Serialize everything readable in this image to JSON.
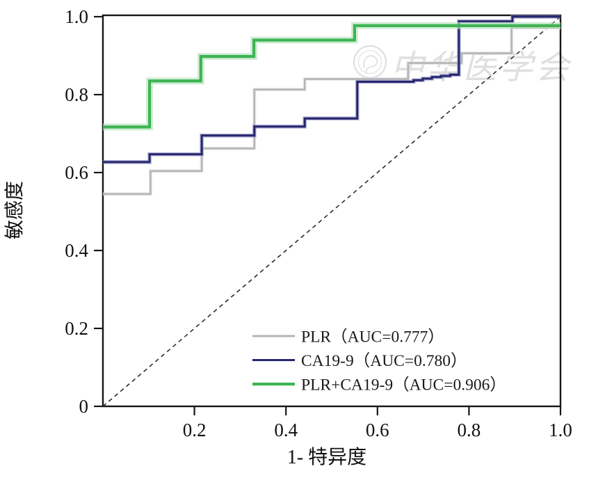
{
  "figure": {
    "background": "#ffffff"
  },
  "watermark": {
    "text": "中华医学会",
    "color": "#c6c6ca",
    "opacity": 0.55
  },
  "chart_data": {
    "type": "line",
    "variant": "roc-step-curves",
    "title": "",
    "xlabel": "1- 特异度",
    "ylabel": "敏感度",
    "xlim": [
      0,
      1.0
    ],
    "ylim": [
      0,
      1.0
    ],
    "grid": false,
    "axis_color": "#161616",
    "x_ticks": {
      "values": [
        0.2,
        0.4,
        0.6,
        0.8,
        1.0
      ],
      "labels": [
        "0.2",
        "0.4",
        "0.6",
        "0.8",
        "1.0"
      ]
    },
    "y_ticks": {
      "values": [
        0,
        0.2,
        0.4,
        0.6,
        0.8,
        1.0
      ],
      "labels": [
        "0",
        "0.2",
        "0.4",
        "0.6",
        "0.8",
        "1.0"
      ]
    },
    "reference_line": {
      "name": "chance-diagonal",
      "points": [
        [
          0,
          0
        ],
        [
          1,
          1
        ]
      ],
      "color": "#2b2b2b",
      "dash": "6 5",
      "width": 1.6
    },
    "series": [
      {
        "name": "PLR",
        "auc": 0.777,
        "color": "#b5b5b8",
        "halo": "#e0e0e3",
        "halo_width": 5.2,
        "width": 2.6,
        "points": [
          [
            0,
            0.545
          ],
          [
            0.104,
            0.545
          ],
          [
            0.104,
            0.604
          ],
          [
            0.216,
            0.604
          ],
          [
            0.216,
            0.662
          ],
          [
            0.331,
            0.662
          ],
          [
            0.331,
            0.813
          ],
          [
            0.441,
            0.813
          ],
          [
            0.441,
            0.84
          ],
          [
            0.667,
            0.84
          ],
          [
            0.667,
            0.881
          ],
          [
            0.784,
            0.881
          ],
          [
            0.784,
            0.906
          ],
          [
            0.893,
            0.906
          ],
          [
            0.893,
            0.972
          ],
          [
            1.0,
            0.972
          ]
        ]
      },
      {
        "name": "CA19-9",
        "auc": 0.78,
        "color": "#26266e",
        "halo": "#8b8bbf",
        "halo_width": 5.6,
        "width": 3,
        "points": [
          [
            0,
            0.627
          ],
          [
            0.102,
            0.627
          ],
          [
            0.102,
            0.647
          ],
          [
            0.216,
            0.647
          ],
          [
            0.216,
            0.695
          ],
          [
            0.331,
            0.695
          ],
          [
            0.331,
            0.718
          ],
          [
            0.441,
            0.718
          ],
          [
            0.441,
            0.739
          ],
          [
            0.556,
            0.739
          ],
          [
            0.556,
            0.833
          ],
          [
            0.679,
            0.833
          ],
          [
            0.679,
            0.837
          ],
          [
            0.699,
            0.837
          ],
          [
            0.699,
            0.841
          ],
          [
            0.719,
            0.841
          ],
          [
            0.719,
            0.845
          ],
          [
            0.739,
            0.845
          ],
          [
            0.739,
            0.848
          ],
          [
            0.759,
            0.848
          ],
          [
            0.759,
            0.851
          ],
          [
            0.778,
            0.851
          ],
          [
            0.778,
            0.988
          ],
          [
            0.895,
            0.988
          ],
          [
            0.895,
            1.0
          ],
          [
            1.0,
            1.0
          ]
        ]
      },
      {
        "name": "PLR+CA19-9",
        "auc": 0.906,
        "color": "#3fb454",
        "halo": "#b7e4bf",
        "halo_width": 10,
        "width": 4.2,
        "points": [
          [
            0,
            0.717
          ],
          [
            0.102,
            0.717
          ],
          [
            0.102,
            0.835
          ],
          [
            0.214,
            0.835
          ],
          [
            0.214,
            0.898
          ],
          [
            0.33,
            0.898
          ],
          [
            0.33,
            0.94
          ],
          [
            0.55,
            0.94
          ],
          [
            0.55,
            0.977
          ],
          [
            1.0,
            0.977
          ]
        ]
      }
    ],
    "legend_position": "inside-bottom-right",
    "legend": [
      {
        "label": "PLR（AUC=0.777）"
      },
      {
        "label": "CA19-9（AUC=0.780）"
      },
      {
        "label": "PLR+CA19-9（AUC=0.906）"
      }
    ]
  }
}
